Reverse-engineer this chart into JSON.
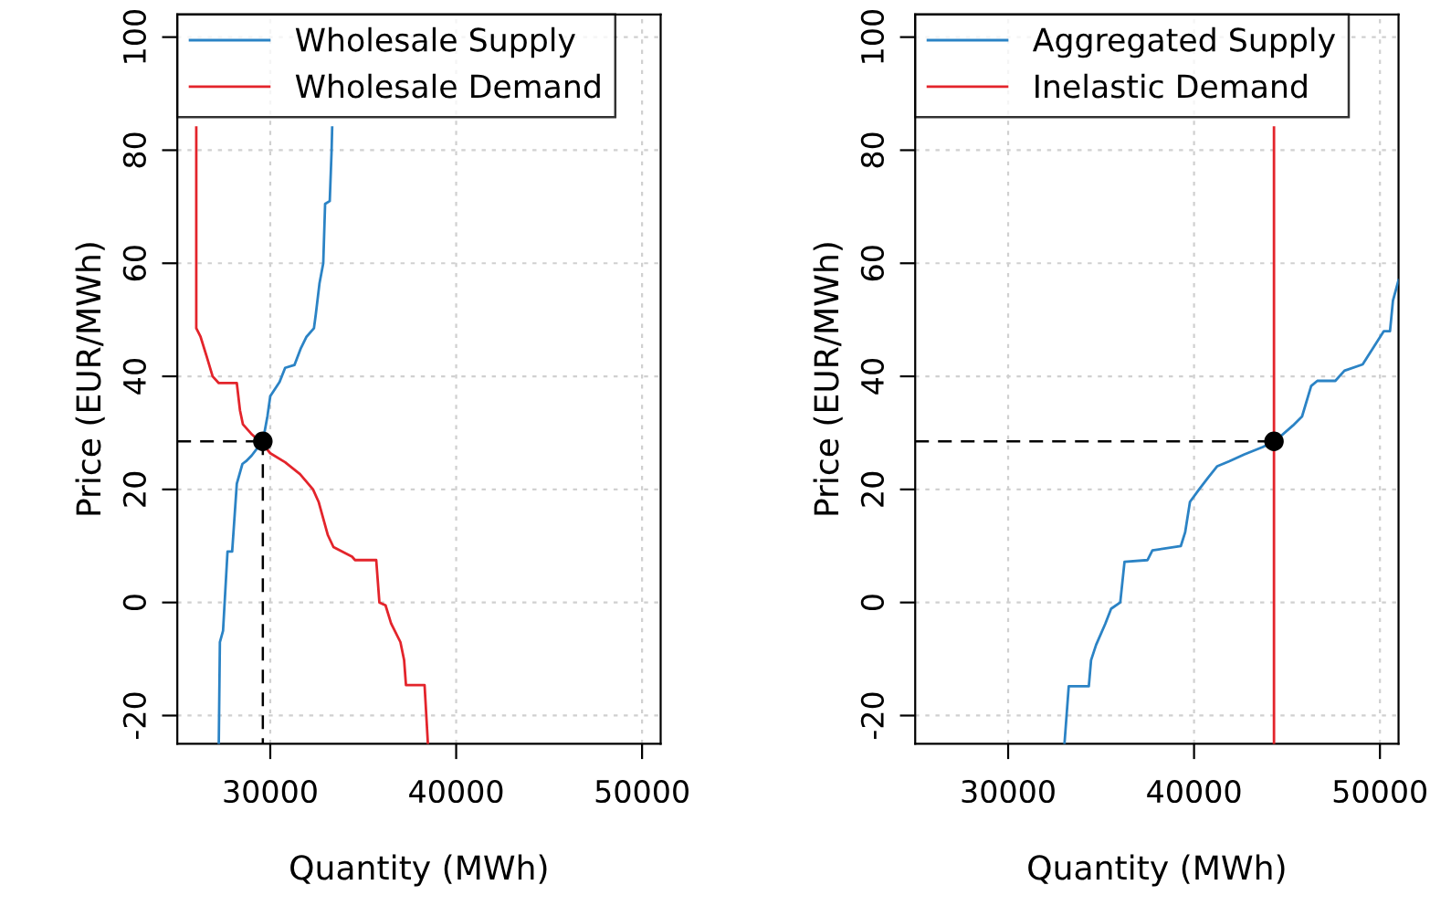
{
  "chart_data": [
    {
      "type": "line",
      "xlabel": "Quantity (MWh)",
      "ylabel": "Price (EUR/MWh)",
      "xlim": [
        25000,
        51000
      ],
      "ylim": [
        -25,
        104
      ],
      "xticks": [
        30000,
        40000,
        50000
      ],
      "yticks": [
        -20,
        0,
        20,
        40,
        60,
        80,
        100
      ],
      "grid": true,
      "legend": "top left",
      "series": [
        {
          "name": "Wholesale Supply",
          "color": "#2b83c5",
          "x": [
            27230,
            27290,
            27460,
            27700,
            27950,
            28200,
            28500,
            28700,
            29000,
            29350,
            29600,
            29850,
            30000,
            30500,
            30800,
            31300,
            31650,
            31950,
            32350,
            32450,
            32650,
            32850,
            32950,
            33200,
            33300,
            33330
          ],
          "values": [
            -25,
            -7,
            -5,
            9,
            9,
            21,
            24.5,
            25,
            26,
            27.5,
            28.5,
            33,
            36.5,
            39,
            41.5,
            42,
            45,
            47,
            48.5,
            51,
            56.5,
            60,
            70.5,
            71,
            80,
            84
          ]
        },
        {
          "name": "Wholesale Demand",
          "color": "#e3242b",
          "x": [
            26020,
            26020,
            26250,
            26580,
            26900,
            27230,
            28200,
            28370,
            28530,
            29020,
            29600,
            30000,
            30800,
            31600,
            32300,
            32600,
            33100,
            33400,
            34400,
            34560,
            35700,
            35870,
            36200,
            36500,
            37000,
            37200,
            37300,
            38300,
            38480
          ],
          "values": [
            84,
            48.5,
            47,
            43.5,
            40,
            38.8,
            38.8,
            34,
            31.5,
            29.7,
            28,
            26.4,
            24.8,
            22.7,
            20,
            17.8,
            11.9,
            9.8,
            8.1,
            7.5,
            7.5,
            0,
            -0.5,
            -3.7,
            -7,
            -10.2,
            -14.6,
            -14.6,
            -25
          ]
        },
        {
          "type": "line",
          "color": "#000000",
          "line_style": "dashed",
          "x": [
            25000,
            29600
          ],
          "values": [
            28.5,
            28.5
          ]
        },
        {
          "type": "line",
          "color": "#000000",
          "line_style": "dashed",
          "x": [
            29600,
            29600
          ],
          "values": [
            28.5,
            -25
          ]
        },
        {
          "type": "scatter",
          "color": "#000000",
          "marker": "circle",
          "x": [
            29600
          ],
          "values": [
            28.5
          ]
        }
      ]
    },
    {
      "type": "line",
      "xlabel": "Quantity (MWh)",
      "ylabel": "Price (EUR/MWh)",
      "xlim": [
        25000,
        51000
      ],
      "ylim": [
        -25,
        104
      ],
      "xticks": [
        30000,
        40000,
        50000
      ],
      "yticks": [
        -20,
        0,
        20,
        40,
        60,
        80,
        100
      ],
      "grid": true,
      "legend": "top left",
      "series": [
        {
          "name": "Aggregated Supply",
          "color": "#2b83c5",
          "x": [
            33030,
            33260,
            34340,
            34460,
            34730,
            35220,
            35540,
            36030,
            36260,
            37500,
            37760,
            39290,
            39520,
            39780,
            40270,
            40760,
            41250,
            41900,
            42710,
            43690,
            44340,
            45320,
            45810,
            46300,
            46630,
            47600,
            48090,
            49070,
            50210,
            50540,
            50700,
            51000
          ],
          "values": [
            -25,
            -14.8,
            -14.8,
            -10.2,
            -7.5,
            -3.8,
            -1.1,
            0,
            7.2,
            7.5,
            9.2,
            10,
            12.4,
            17.8,
            20,
            22.1,
            24.1,
            25,
            26.2,
            27.5,
            28.5,
            31.3,
            32.9,
            38.3,
            39.2,
            39.2,
            41,
            42.1,
            48,
            48,
            53.4,
            57
          ]
        },
        {
          "name": "Inelastic Demand",
          "color": "#e3242b",
          "x": [
            44300,
            44300
          ],
          "values": [
            -25,
            84
          ]
        },
        {
          "type": "line",
          "color": "#000000",
          "line_style": "dashed",
          "x": [
            25000,
            44300
          ],
          "values": [
            28.5,
            28.5
          ]
        },
        {
          "type": "scatter",
          "color": "#000000",
          "marker": "circle",
          "x": [
            44300
          ],
          "values": [
            28.5
          ]
        }
      ]
    }
  ]
}
